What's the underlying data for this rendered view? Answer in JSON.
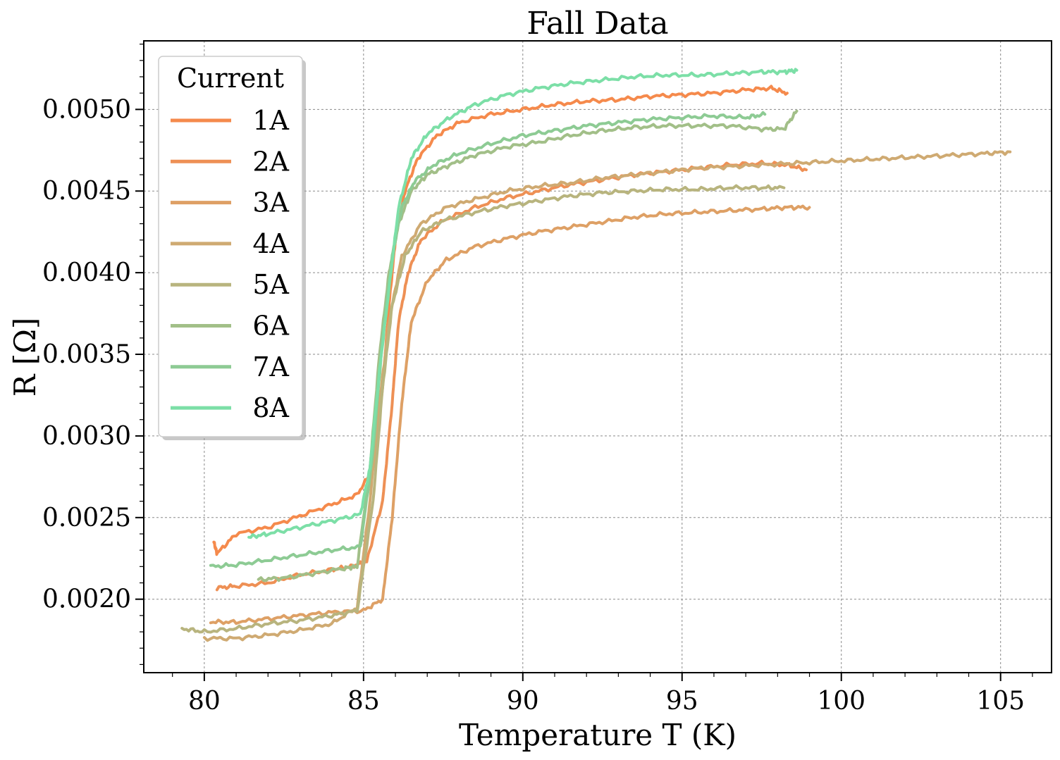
{
  "chart_data": {
    "type": "line",
    "title": "Fall Data",
    "xlabel": "Temperature T (K)",
    "ylabel": "R [Ω]",
    "xlim": [
      78.1,
      106.6
    ],
    "ylim": [
      0.00155,
      0.00542
    ],
    "xticks": [
      80,
      85,
      90,
      95,
      100,
      105
    ],
    "xtick_labels": [
      "80",
      "85",
      "90",
      "95",
      "100",
      "105"
    ],
    "yticks": [
      0.002,
      0.0025,
      0.003,
      0.0035,
      0.004,
      0.0045,
      0.005
    ],
    "ytick_labels": [
      "0.0020",
      "0.0025",
      "0.0030",
      "0.0035",
      "0.0040",
      "0.0045",
      "0.0050"
    ],
    "grid": true,
    "legend": {
      "title": "Current",
      "placement": "top-left"
    },
    "series": [
      {
        "name": "1A",
        "color": "#f58a4c",
        "x": [
          80.3,
          80.4,
          81.0,
          82.0,
          83.0,
          84.0,
          84.8,
          85.3,
          85.6,
          85.8,
          86.0,
          86.3,
          86.7,
          87.3,
          88.0,
          89.0,
          90.0,
          91.0,
          92.0,
          93.0,
          94.0,
          95.0,
          96.0,
          97.0,
          97.8,
          98.3
        ],
        "y": [
          0.00235,
          0.00228,
          0.0024,
          0.00244,
          0.00251,
          0.00258,
          0.00264,
          0.0028,
          0.0033,
          0.0038,
          0.0042,
          0.0045,
          0.0047,
          0.00484,
          0.00492,
          0.00497,
          0.005,
          0.00503,
          0.00505,
          0.00506,
          0.00508,
          0.00509,
          0.0051,
          0.00512,
          0.00513,
          0.0051
        ]
      },
      {
        "name": "2A",
        "color": "#ee9055",
        "x": [
          80.4,
          81.0,
          82.0,
          83.0,
          84.0,
          84.6,
          85.1,
          85.6,
          85.9,
          86.1,
          86.4,
          86.8,
          87.5,
          88.5,
          89.5,
          90.5,
          91.5,
          92.5,
          93.5,
          94.5,
          95.5,
          96.5,
          97.5,
          98.3,
          98.9
        ],
        "y": [
          0.00207,
          0.00208,
          0.0021,
          0.00215,
          0.00218,
          0.0022,
          0.00223,
          0.0026,
          0.0032,
          0.0037,
          0.004,
          0.0042,
          0.00432,
          0.0044,
          0.00446,
          0.0045,
          0.00454,
          0.00457,
          0.0046,
          0.00462,
          0.00464,
          0.00466,
          0.00467,
          0.00466,
          0.00463
        ]
      },
      {
        "name": "3A",
        "color": "#dea065",
        "x": [
          80.2,
          81.0,
          82.0,
          83.0,
          84.0,
          85.0,
          85.6,
          85.9,
          86.2,
          86.5,
          87.0,
          87.6,
          88.5,
          89.5,
          90.5,
          91.5,
          92.5,
          93.5,
          94.5,
          95.5,
          96.5,
          97.5,
          98.3,
          99.0
        ],
        "y": [
          0.00186,
          0.00186,
          0.00188,
          0.0019,
          0.00192,
          0.00193,
          0.002,
          0.0025,
          0.0032,
          0.0037,
          0.00395,
          0.00408,
          0.00416,
          0.00421,
          0.00425,
          0.00428,
          0.00431,
          0.00434,
          0.00436,
          0.00437,
          0.00438,
          0.00439,
          0.0044,
          0.0044
        ]
      },
      {
        "name": "4A",
        "color": "#cfaa72",
        "x": [
          80.0,
          81.0,
          82.0,
          83.0,
          84.0,
          84.8,
          85.2,
          85.5,
          85.8,
          86.2,
          86.8,
          87.6,
          88.5,
          89.5,
          90.5,
          91.5,
          92.5,
          93.5,
          94.5,
          95.5,
          96.5,
          97.5,
          98.5,
          99.5,
          100.5,
          101.5,
          102.5,
          103.5,
          104.5,
          105.3
        ],
        "y": [
          0.00176,
          0.00176,
          0.00178,
          0.00181,
          0.00185,
          0.00195,
          0.0026,
          0.0032,
          0.0037,
          0.0041,
          0.0043,
          0.0044,
          0.00445,
          0.0045,
          0.00453,
          0.00455,
          0.00458,
          0.0046,
          0.00462,
          0.00464,
          0.00465,
          0.00466,
          0.00467,
          0.00468,
          0.00469,
          0.0047,
          0.00471,
          0.00472,
          0.00473,
          0.00474
        ]
      },
      {
        "name": "5A",
        "color": "#b8b47e",
        "x": [
          79.3,
          80.0,
          81.0,
          82.0,
          83.0,
          84.0,
          84.8,
          85.3,
          85.6,
          85.9,
          86.3,
          86.8,
          87.5,
          88.5,
          89.5,
          90.5,
          91.5,
          92.5,
          93.5,
          94.5,
          95.5,
          96.5,
          97.5,
          98.2
        ],
        "y": [
          0.00182,
          0.0018,
          0.00182,
          0.00185,
          0.00187,
          0.0019,
          0.00193,
          0.0026,
          0.0033,
          0.0038,
          0.0041,
          0.00425,
          0.00432,
          0.00437,
          0.00441,
          0.00444,
          0.00447,
          0.00449,
          0.0045,
          0.00451,
          0.00451,
          0.00452,
          0.00452,
          0.00452
        ]
      },
      {
        "name": "6A",
        "color": "#a2bf88",
        "x": [
          81.7,
          82.5,
          83.5,
          84.4,
          84.8,
          85.2,
          85.5,
          85.8,
          86.1,
          86.5,
          87.0,
          87.7,
          88.5,
          89.5,
          90.5,
          91.5,
          92.5,
          93.5,
          94.5,
          95.5,
          96.5,
          97.5,
          98.2,
          98.6
        ],
        "y": [
          0.00212,
          0.00213,
          0.00216,
          0.00219,
          0.0022,
          0.0028,
          0.0035,
          0.004,
          0.0043,
          0.0045,
          0.0046,
          0.00466,
          0.00472,
          0.00477,
          0.0048,
          0.00484,
          0.00487,
          0.00489,
          0.0049,
          0.0049,
          0.0049,
          0.00488,
          0.00488,
          0.00499
        ]
      },
      {
        "name": "7A",
        "color": "#8dcb94",
        "x": [
          80.2,
          81.0,
          82.0,
          83.0,
          84.0,
          84.9,
          85.3,
          85.6,
          85.9,
          86.2,
          86.6,
          87.2,
          88.0,
          89.0,
          90.0,
          91.0,
          92.0,
          93.0,
          94.0,
          95.0,
          96.0,
          97.0,
          97.6
        ],
        "y": [
          0.0022,
          0.00221,
          0.00224,
          0.00227,
          0.0023,
          0.00232,
          0.0029,
          0.0036,
          0.0041,
          0.0044,
          0.00456,
          0.00466,
          0.00473,
          0.00479,
          0.00484,
          0.00487,
          0.0049,
          0.00492,
          0.00494,
          0.00495,
          0.00496,
          0.00495,
          0.00497
        ]
      },
      {
        "name": "8A",
        "color": "#7cdfa7",
        "x": [
          81.4,
          82.0,
          83.0,
          84.0,
          84.9,
          85.2,
          85.5,
          85.8,
          86.1,
          86.5,
          87.0,
          87.7,
          88.5,
          89.5,
          90.5,
          91.5,
          92.5,
          93.5,
          94.5,
          95.5,
          96.5,
          97.5,
          98.2,
          98.6
        ],
        "y": [
          0.00238,
          0.0024,
          0.00244,
          0.00248,
          0.00252,
          0.0028,
          0.0034,
          0.0039,
          0.0044,
          0.0047,
          0.00485,
          0.00495,
          0.00503,
          0.00509,
          0.00513,
          0.00516,
          0.00518,
          0.0052,
          0.00521,
          0.00521,
          0.00522,
          0.00523,
          0.00523,
          0.00524
        ]
      }
    ]
  }
}
